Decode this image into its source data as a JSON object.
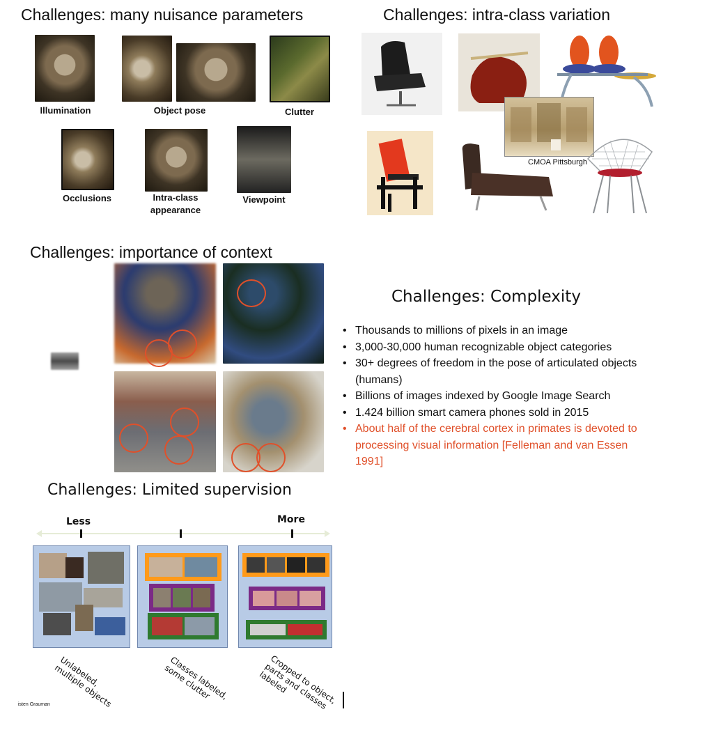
{
  "section_nuisance": {
    "title": "Challenges: many nuisance parameters",
    "captions": {
      "illumination": "Illumination",
      "object_pose": "Object pose",
      "clutter": "Clutter",
      "occlusions": "Occlusions",
      "intra_class_appearance_1": "Intra-class",
      "intra_class_appearance_2": "appearance",
      "viewpoint": "Viewpoint"
    }
  },
  "section_intraclass": {
    "title": "Challenges: intra-class variation",
    "museum_caption": "CMOA Pittsburgh"
  },
  "section_context": {
    "title": "Challenges: importance of context"
  },
  "section_complexity": {
    "title": "Challenges: Complexity",
    "bullets": [
      "Thousands to millions of pixels in an image",
      "3,000-30,000 human recognizable object categories",
      "30+ degrees of freedom in the pose of articulated objects (humans)",
      "Billions of images indexed by Google Image Search",
      "1.424 billion smart camera phones sold in 2015"
    ],
    "highlight": "About half of the cerebral cortex in primates is devoted to processing visual information [Felleman and van Essen 1991]",
    "highlight_color": "#e0502a"
  },
  "section_supervision": {
    "title": "Challenges: Limited supervision",
    "less_label": "Less",
    "more_label": "More",
    "labels": {
      "left_1": "Unlabeled,",
      "left_2": "multiple objects",
      "mid_1": "Classes labeled,",
      "mid_2": "some clutter",
      "right_1": "Cropped to object,",
      "right_2": "parts and classes",
      "right_3": "labeled"
    },
    "credit": "isten Grauman"
  }
}
